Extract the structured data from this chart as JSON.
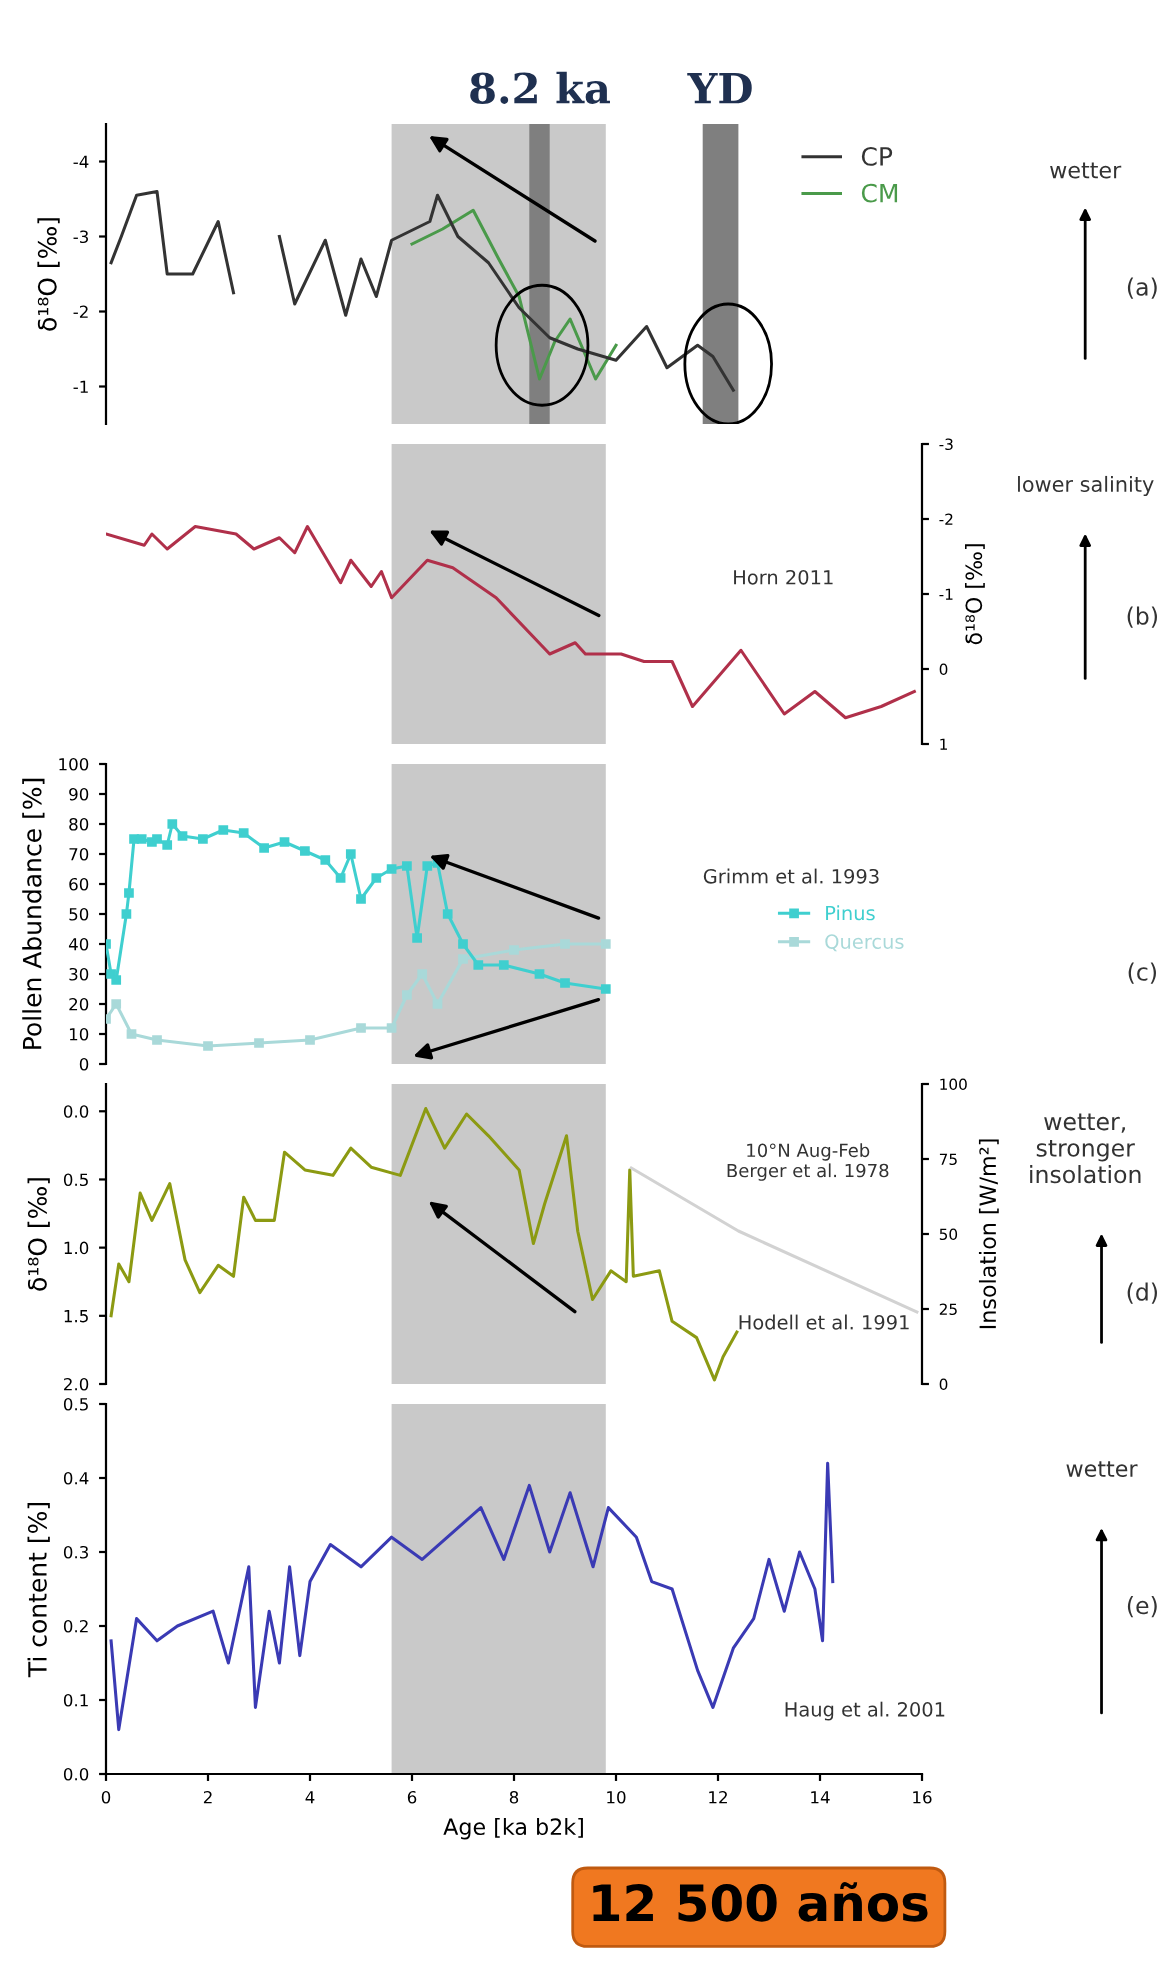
{
  "chart_data": [
    {
      "type": "line",
      "ylabel": "δ¹⁸O [‰]",
      "xlim": [
        0,
        16
      ],
      "ylim": [
        -0.5,
        -4.5
      ],
      "yticks": [
        -4,
        -3,
        -2,
        -1
      ],
      "tick_labels": "y",
      "legend": "top right",
      "bands": [
        {
          "axis": "x",
          "from": 5.6,
          "to": 9.8,
          "color": "#c9c9c9"
        },
        {
          "axis": "x",
          "from": 8.3,
          "to": 8.7,
          "label": "8.2 ka",
          "color": "#7f7f7f"
        },
        {
          "axis": "x",
          "from": 11.7,
          "to": 12.4,
          "label": "YD",
          "color": "#7f7f7f"
        }
      ],
      "annotations": [
        "wetter",
        "(a)"
      ],
      "series": [
        {
          "name": "CP",
          "color": "#333333",
          "x": [
            0.1,
            0.3,
            0.6,
            1.0,
            1.2,
            1.7,
            2.2,
            2.5,
            2.8,
            3.4,
            3.7,
            4.3,
            4.7,
            5.0,
            5.3,
            5.6,
            6.35,
            6.5,
            6.9,
            7.5,
            8.1,
            8.7,
            9.25,
            10.0,
            10.6,
            11.0,
            11.6,
            11.9,
            12.3
          ],
          "values": [
            -2.65,
            -3.0,
            -3.55,
            -3.6,
            -2.5,
            -2.5,
            -3.2,
            -2.25,
            null,
            -3.0,
            -2.1,
            -2.95,
            -1.95,
            -2.7,
            -2.2,
            -2.95,
            -3.2,
            -3.55,
            -3.0,
            -2.65,
            -2.05,
            -1.65,
            -1.5,
            -1.35,
            -1.8,
            -1.25,
            -1.55,
            -1.4,
            -0.95
          ]
        },
        {
          "name": "CM",
          "color": "#4a9a4a",
          "x": [
            6.0,
            6.6,
            7.2,
            7.7,
            8.1,
            8.5,
            8.8,
            9.1,
            9.6,
            10.0
          ],
          "values": [
            -2.9,
            -3.1,
            -3.35,
            -2.7,
            -2.2,
            -1.1,
            -1.6,
            -1.9,
            -1.1,
            -1.55
          ]
        }
      ]
    },
    {
      "type": "line",
      "y2label": "δ¹⁸O [‰]",
      "xlim": [
        0,
        16
      ],
      "y2lim": [
        1,
        -3
      ],
      "y2ticks": [
        -3,
        -2,
        -1,
        0,
        1
      ],
      "tick_labels": "y",
      "bands": [
        {
          "axis": "x",
          "from": 5.6,
          "to": 9.8,
          "color": "#c9c9c9"
        }
      ],
      "annotations": [
        "Horn 2011",
        "lower salinity",
        "(b)"
      ],
      "series": [
        {
          "color": "#b0304a",
          "axis": "y2",
          "x": [
            0,
            0.75,
            0.9,
            1.2,
            1.75,
            2.55,
            2.9,
            3.4,
            3.7,
            3.95,
            4.6,
            4.8,
            5.2,
            5.4,
            5.6,
            6.3,
            6.8,
            7.65,
            8.7,
            9.2,
            9.4,
            10.1,
            10.55,
            11.1,
            11.5,
            12.45,
            13.3,
            13.9,
            14.5,
            15.2,
            15.85
          ],
          "values": [
            -1.8,
            -1.65,
            -1.8,
            -1.6,
            -1.9,
            -1.8,
            -1.6,
            -1.75,
            -1.55,
            -1.9,
            -1.15,
            -1.45,
            -1.1,
            -1.3,
            -0.95,
            -1.45,
            -1.35,
            -0.95,
            -0.2,
            -0.35,
            -0.2,
            -0.2,
            -0.1,
            -0.1,
            0.5,
            -0.25,
            0.6,
            0.3,
            0.65,
            0.5,
            0.3
          ]
        }
      ]
    },
    {
      "type": "line",
      "ylabel": "Pollen Abundance [%]",
      "xlim": [
        0,
        16
      ],
      "ylim": [
        0,
        100
      ],
      "yticks": [
        0,
        10,
        20,
        30,
        40,
        50,
        60,
        70,
        80,
        90,
        100
      ],
      "tick_labels": "y",
      "legend": "right",
      "marker": "square",
      "bands": [
        {
          "axis": "x",
          "from": 5.6,
          "to": 9.8,
          "color": "#c9c9c9"
        }
      ],
      "annotations": [
        "Grimm et al. 1993",
        "(c)"
      ],
      "series": [
        {
          "name": "Pinus",
          "color": "#3fcfcf",
          "x": [
            0.0,
            0.1,
            0.2,
            0.4,
            0.45,
            0.55,
            0.7,
            0.9,
            1.0,
            1.2,
            1.3,
            1.5,
            1.9,
            2.3,
            2.7,
            3.1,
            3.5,
            3.9,
            4.3,
            4.6,
            4.8,
            5.0,
            5.3,
            5.6,
            5.9,
            6.1,
            6.3,
            6.5,
            6.7,
            7.0,
            7.3,
            7.8,
            8.5,
            9.0,
            9.8
          ],
          "values": [
            40,
            30,
            28,
            50,
            57,
            75,
            75,
            74,
            75,
            73,
            80,
            76,
            75,
            78,
            77,
            72,
            74,
            71,
            68,
            62,
            70,
            55,
            62,
            65,
            66,
            42,
            66,
            67,
            50,
            40,
            33,
            33,
            30,
            27,
            25
          ]
        },
        {
          "name": "Quercus",
          "color": "#a9d9d9",
          "x": [
            0.0,
            0.2,
            0.5,
            1.0,
            2.0,
            3.0,
            4.0,
            5.0,
            5.6,
            5.9,
            6.2,
            6.5,
            7.0,
            8.0,
            9.0,
            9.8
          ],
          "values": [
            15,
            20,
            10,
            8,
            6,
            7,
            8,
            12,
            12,
            23,
            30,
            20,
            35,
            38,
            40,
            40
          ]
        }
      ]
    },
    {
      "type": "line",
      "ylabel": "δ¹⁸O [‰]",
      "y2label": "Insolation [W/m²]",
      "xlim": [
        0,
        16
      ],
      "ylim": [
        2.0,
        -0.2
      ],
      "yticks": [
        {
          "value": 0,
          "label": "0.0"
        },
        0.5,
        {
          "value": 1,
          "label": "1.0"
        },
        1.5,
        {
          "value": 2,
          "label": "2.0"
        }
      ],
      "y2lim": [
        0,
        100
      ],
      "y2ticks": [
        0,
        25,
        50,
        75,
        100
      ],
      "tick_labels": "y",
      "bands": [
        {
          "axis": "x",
          "from": 5.6,
          "to": 9.8,
          "color": "#c9c9c9"
        }
      ],
      "annotations": [
        "10°N Aug-Feb\nBerger et al. 1978",
        "Hodell et al. 1991",
        "wetter,\nstronger\ninsolation",
        "(d)"
      ],
      "series": [
        {
          "color": "#8c9a12",
          "x": [
            0.1,
            0.25,
            0.45,
            0.67,
            0.9,
            1.25,
            1.55,
            1.84,
            2.2,
            2.5,
            2.7,
            2.93,
            3.3,
            3.5,
            3.9,
            4.45,
            4.8,
            5.2,
            5.77,
            6.27,
            6.64,
            7.07,
            7.5,
            8.1,
            8.38,
            8.6,
            9.03,
            9.25,
            9.54,
            9.9,
            10.2,
            10.27,
            10.34,
            10.85,
            11.1,
            11.58,
            11.93,
            12.1,
            12.37
          ],
          "values": [
            1.5,
            1.12,
            1.25,
            0.6,
            0.8,
            0.53,
            1.09,
            1.33,
            1.13,
            1.21,
            0.63,
            0.8,
            0.8,
            0.3,
            0.43,
            0.47,
            0.27,
            0.41,
            0.47,
            -0.02,
            0.27,
            0.02,
            0.18,
            0.43,
            0.97,
            0.68,
            0.18,
            0.88,
            1.38,
            1.17,
            1.25,
            0.43,
            1.21,
            1.17,
            1.54,
            1.66,
            1.97,
            1.8,
            1.62
          ]
        },
        {
          "color": "#d2d2d2",
          "axis": "y2",
          "x": [
            10.3,
            12.4,
            15.9
          ],
          "values": [
            72,
            51,
            24
          ]
        }
      ]
    },
    {
      "type": "line",
      "xlabel": "Age [ka b2k]",
      "ylabel": "Ti content [%]",
      "xlim": [
        0,
        16
      ],
      "xticks": [
        0,
        2,
        4,
        6,
        8,
        10,
        12,
        14,
        16
      ],
      "ylim": [
        0,
        0.5
      ],
      "yticks": [
        {
          "value": 0,
          "label": "0.0"
        },
        0.1,
        0.2,
        0.3,
        0.4,
        0.5
      ],
      "bands": [
        {
          "axis": "x",
          "from": 5.6,
          "to": 9.8,
          "color": "#c9c9c9"
        }
      ],
      "annotations": [
        "wetter",
        "(e)",
        "Haug et al. 2001",
        "12 500 años"
      ],
      "series": [
        {
          "color": "#3a3ab4",
          "x": [
            0.1,
            0.25,
            0.6,
            1.0,
            1.4,
            2.1,
            2.4,
            2.8,
            2.93,
            3.2,
            3.4,
            3.6,
            3.8,
            4.0,
            4.4,
            5.0,
            5.6,
            6.2,
            7.35,
            7.8,
            8.3,
            8.7,
            9.1,
            9.55,
            9.85,
            10.4,
            10.7,
            11.1,
            11.6,
            11.9,
            12.3,
            12.7,
            13.0,
            13.3,
            13.6,
            13.9,
            14.05,
            14.15,
            14.25
          ],
          "values": [
            0.18,
            0.06,
            0.21,
            0.18,
            0.2,
            0.22,
            0.15,
            0.28,
            0.09,
            0.22,
            0.15,
            0.28,
            0.16,
            0.26,
            0.31,
            0.28,
            0.32,
            0.29,
            0.36,
            0.29,
            0.39,
            0.3,
            0.38,
            0.28,
            0.36,
            0.32,
            0.26,
            0.25,
            0.14,
            0.09,
            0.17,
            0.21,
            0.29,
            0.22,
            0.3,
            0.25,
            0.18,
            0.42,
            0.26
          ]
        }
      ]
    }
  ]
}
